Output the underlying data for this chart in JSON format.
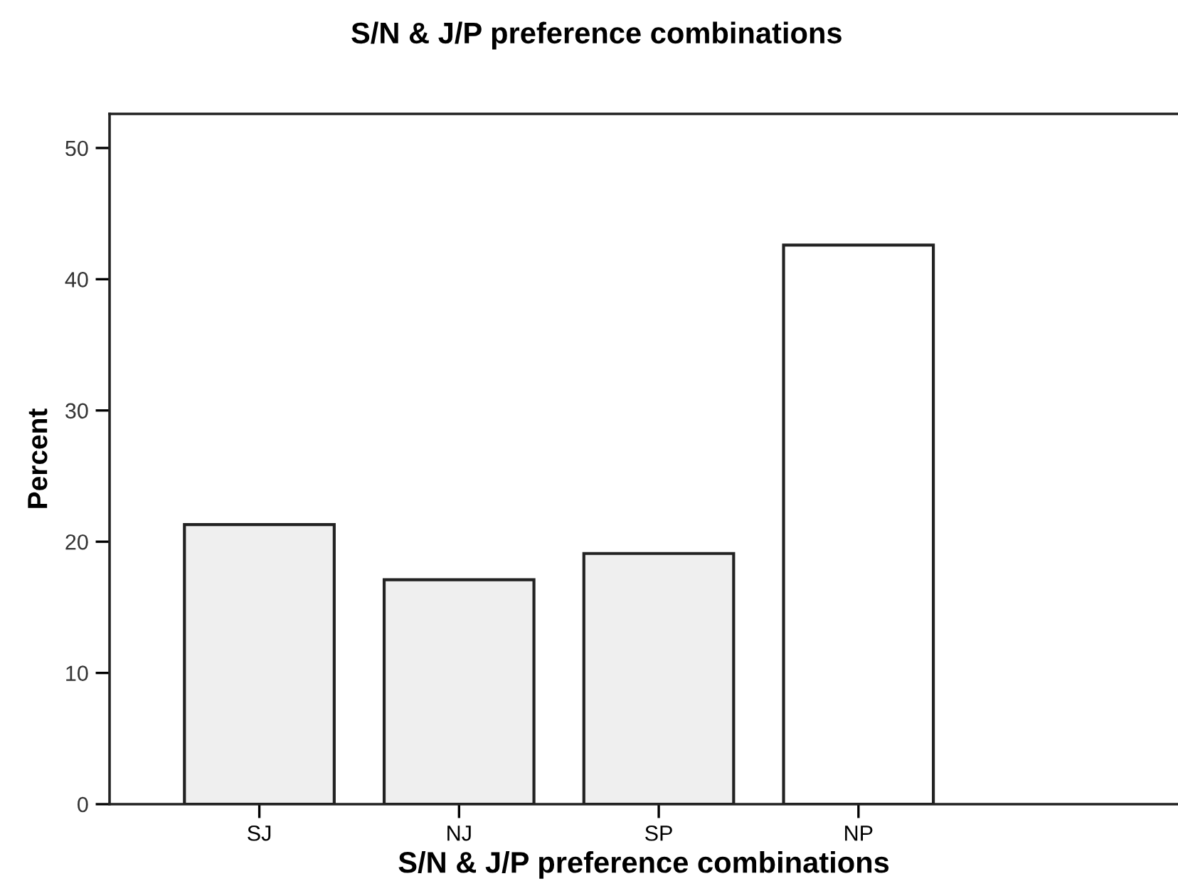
{
  "chart_data": {
    "type": "bar",
    "title": "S/N & J/P preference combinations",
    "xlabel": "S/N & J/P preference combinations",
    "ylabel": "Percent",
    "categories": [
      "SJ",
      "NJ",
      "SP",
      "NP"
    ],
    "values": [
      21.3,
      17.1,
      19.1,
      42.6
    ],
    "colors": [
      "#efefef",
      "#efefef",
      "#efefef",
      "#ffffff"
    ],
    "ylim": [
      0,
      52.6
    ],
    "yticks": [
      0,
      10,
      20,
      30,
      40,
      50
    ],
    "grid": false,
    "legend": false
  }
}
